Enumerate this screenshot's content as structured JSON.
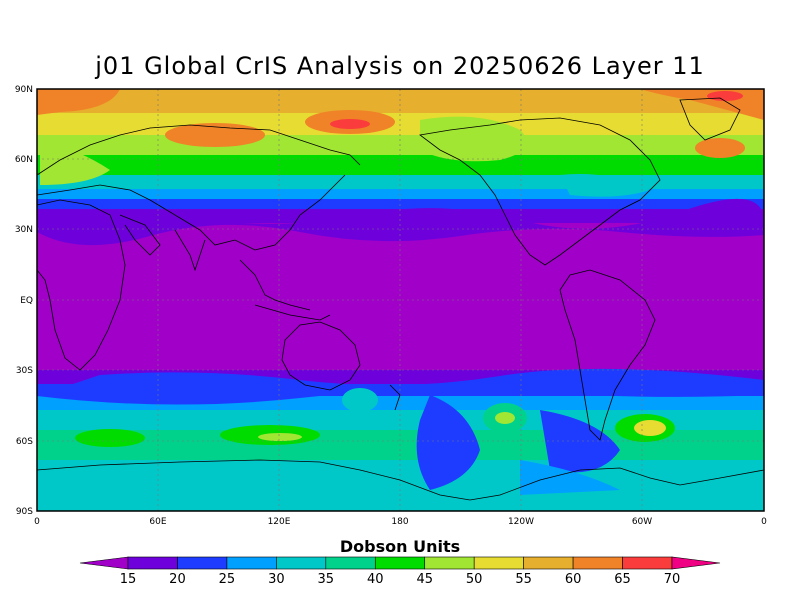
{
  "title": "j01 Global CrIS Analysis on 20250626 Layer 11",
  "colorbar": {
    "title": "Dobson Units",
    "levels": [
      "15",
      "20",
      "25",
      "30",
      "35",
      "40",
      "45",
      "50",
      "55",
      "60",
      "65",
      "70"
    ],
    "colors": [
      "#a000c8",
      "#6e00dc",
      "#1e3cff",
      "#00a0ff",
      "#00c8c8",
      "#00d28c",
      "#00dc00",
      "#a0e632",
      "#e6dc32",
      "#e6af2d",
      "#f08228",
      "#fa3c3c",
      "#f00082"
    ]
  },
  "axes": {
    "lat_labels": [
      "90N",
      "60N",
      "30N",
      "EQ",
      "30S",
      "60S",
      "90S"
    ],
    "lon_labels": [
      "0",
      "60E",
      "120E",
      "180",
      "120W",
      "60W",
      "0"
    ]
  },
  "chart_data": {
    "type": "heatmap",
    "title": "j01 Global CrIS Analysis on 20250626 Layer 11",
    "xlabel": "",
    "ylabel": "",
    "colorbar_label": "Dobson Units",
    "xlim": [
      0,
      360
    ],
    "ylim": [
      -90,
      90
    ],
    "lat_profile": [
      {
        "lat": 90,
        "value": 62
      },
      {
        "lat": 75,
        "value": 55
      },
      {
        "lat": 60,
        "value": 45
      },
      {
        "lat": 50,
        "value": 35
      },
      {
        "lat": 40,
        "value": 22
      },
      {
        "lat": 35,
        "value": 17
      },
      {
        "lat": 0,
        "value": 14
      },
      {
        "lat": -30,
        "value": 17
      },
      {
        "lat": -40,
        "value": 22
      },
      {
        "lat": -50,
        "value": 32
      },
      {
        "lat": -60,
        "value": 38
      },
      {
        "lat": -75,
        "value": 30
      },
      {
        "lat": -90,
        "value": 32
      }
    ]
  }
}
